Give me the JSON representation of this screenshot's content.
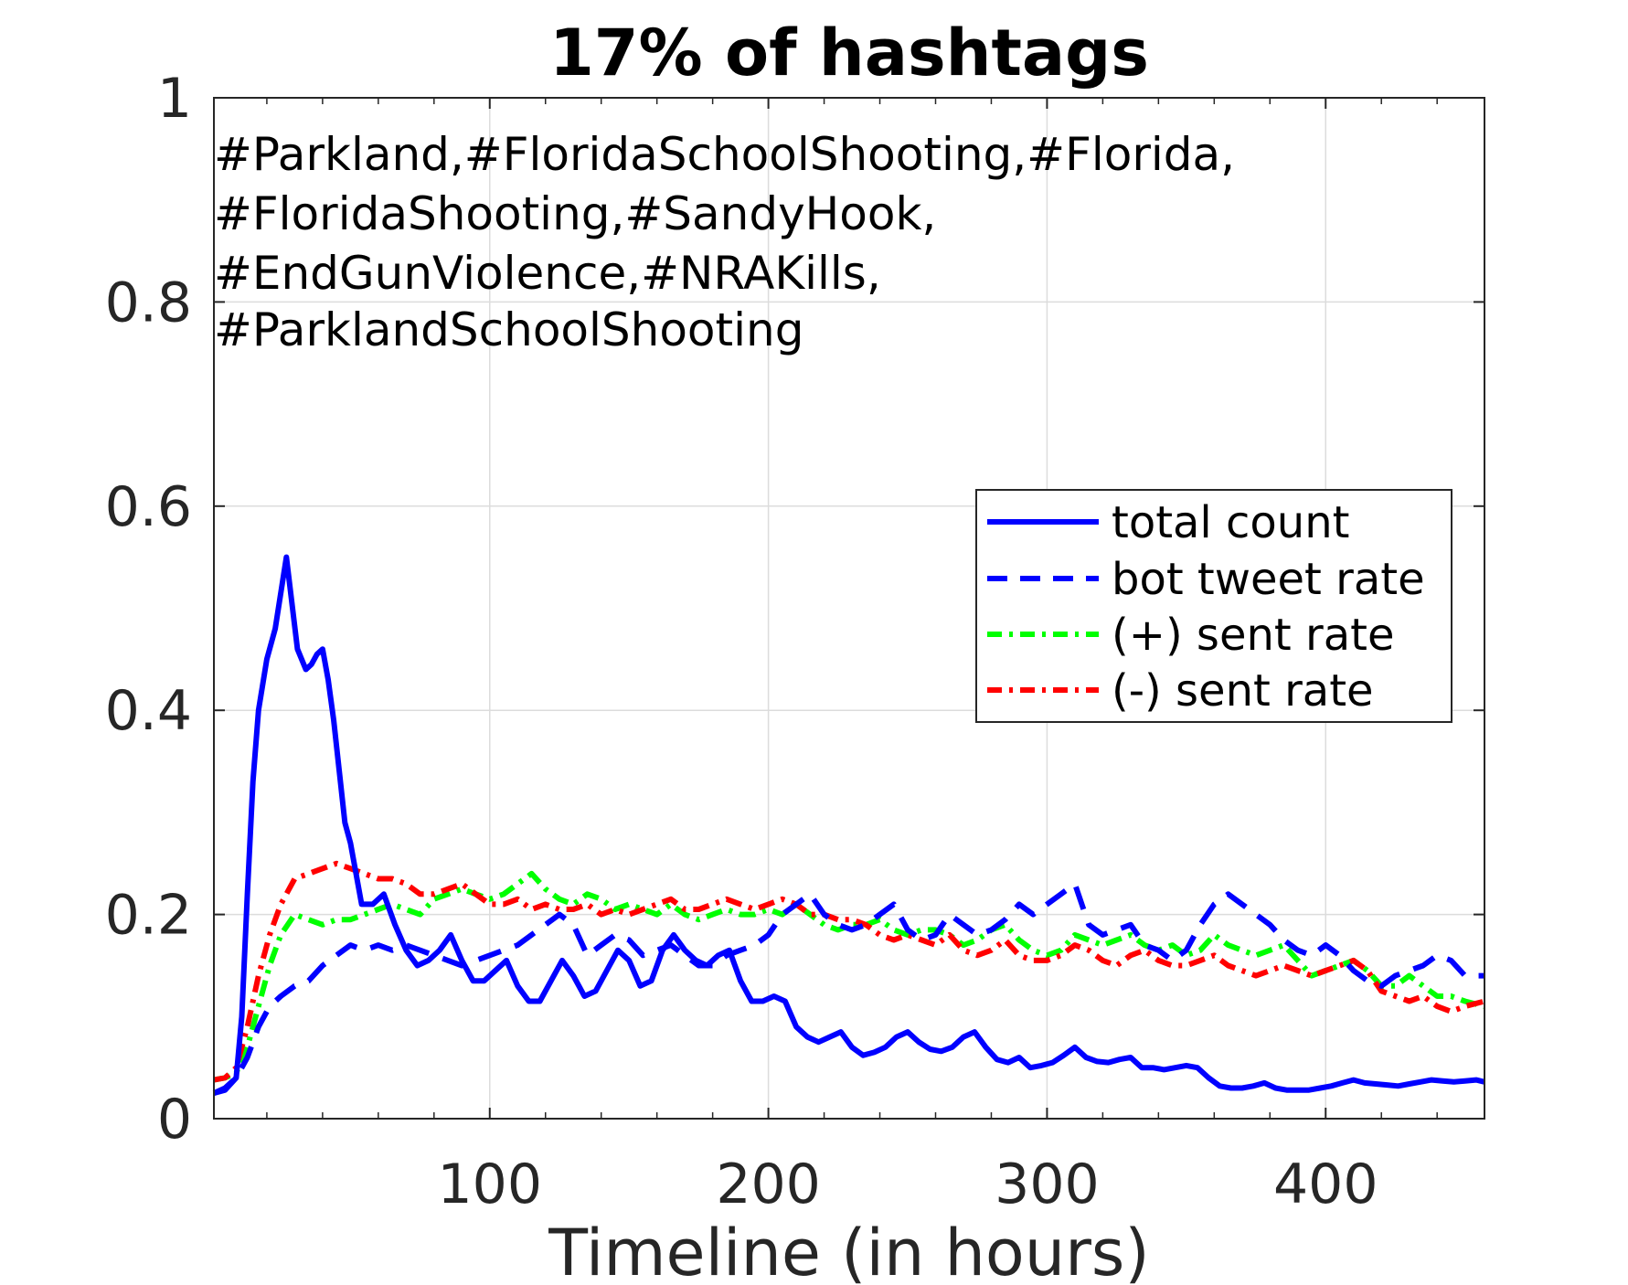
{
  "chart_data": {
    "type": "line",
    "title": "17% of hashtags",
    "xlabel": "Timeline (in hours)",
    "ylabel": "",
    "xlim": [
      1,
      457
    ],
    "ylim": [
      0,
      1
    ],
    "xticks": [
      100,
      200,
      300,
      400
    ],
    "xtick_labels": [
      "100",
      "200",
      "300",
      "400"
    ],
    "yticks": [
      0,
      0.2,
      0.4,
      0.6,
      0.8,
      1
    ],
    "ytick_labels": [
      "0",
      "0.2",
      "0.4",
      "0.6",
      "0.8",
      "1"
    ],
    "grid": true,
    "legend_position": "right",
    "annotation_lines": [
      "#Parkland,#FloridaSchoolShooting,#Florida,",
      "#FloridaShooting,#SandyHook,",
      "#EndGunViolence,#NRAKills,",
      "#ParklandSchoolShooting"
    ],
    "series": [
      {
        "name": "total count",
        "color": "#0000ff",
        "style": "solid",
        "x": [
          1,
          5,
          9,
          11,
          13,
          15,
          17,
          20,
          23,
          27,
          31,
          34,
          36,
          38,
          40,
          42,
          44,
          46,
          48,
          50,
          54,
          58,
          62,
          66,
          70,
          74,
          78,
          82,
          86,
          90,
          94,
          98,
          102,
          106,
          110,
          114,
          118,
          122,
          126,
          130,
          134,
          138,
          142,
          146,
          150,
          154,
          158,
          162,
          166,
          170,
          174,
          178,
          182,
          186,
          190,
          194,
          198,
          202,
          206,
          210,
          214,
          218,
          222,
          226,
          230,
          234,
          238,
          242,
          246,
          250,
          254,
          258,
          262,
          266,
          270,
          274,
          278,
          282,
          286,
          290,
          294,
          298,
          302,
          306,
          310,
          314,
          318,
          322,
          326,
          330,
          334,
          338,
          342,
          346,
          350,
          354,
          358,
          362,
          366,
          370,
          374,
          378,
          382,
          386,
          390,
          394,
          398,
          402,
          406,
          410,
          414,
          418,
          422,
          426,
          430,
          434,
          438,
          442,
          446,
          450,
          454,
          457
        ],
        "values": [
          0.025,
          0.028,
          0.04,
          0.1,
          0.22,
          0.33,
          0.4,
          0.45,
          0.48,
          0.55,
          0.46,
          0.44,
          0.445,
          0.455,
          0.46,
          0.43,
          0.39,
          0.34,
          0.29,
          0.27,
          0.21,
          0.21,
          0.22,
          0.19,
          0.165,
          0.15,
          0.155,
          0.165,
          0.18,
          0.155,
          0.135,
          0.135,
          0.145,
          0.155,
          0.13,
          0.115,
          0.115,
          0.135,
          0.155,
          0.14,
          0.12,
          0.125,
          0.145,
          0.165,
          0.155,
          0.13,
          0.135,
          0.165,
          0.18,
          0.165,
          0.155,
          0.15,
          0.16,
          0.165,
          0.135,
          0.115,
          0.115,
          0.12,
          0.115,
          0.09,
          0.08,
          0.075,
          0.08,
          0.085,
          0.07,
          0.062,
          0.065,
          0.07,
          0.08,
          0.085,
          0.075,
          0.068,
          0.066,
          0.07,
          0.08,
          0.085,
          0.07,
          0.058,
          0.055,
          0.06,
          0.05,
          0.052,
          0.055,
          0.062,
          0.07,
          0.06,
          0.056,
          0.055,
          0.058,
          0.06,
          0.05,
          0.05,
          0.048,
          0.05,
          0.052,
          0.05,
          0.04,
          0.032,
          0.03,
          0.03,
          0.032,
          0.035,
          0.03,
          0.028,
          0.028,
          0.028,
          0.03,
          0.032,
          0.035,
          0.038,
          0.035,
          0.034,
          0.033,
          0.032,
          0.034,
          0.036,
          0.038,
          0.037,
          0.036,
          0.037,
          0.038,
          0.036
        ]
      },
      {
        "name": "bot tweet rate",
        "color": "#0000ff",
        "style": "dashed",
        "x": [
          1,
          5,
          9,
          13,
          17,
          21,
          25,
          30,
          35,
          40,
          45,
          50,
          55,
          60,
          65,
          70,
          75,
          80,
          85,
          90,
          95,
          100,
          105,
          110,
          115,
          120,
          125,
          130,
          135,
          140,
          145,
          150,
          155,
          160,
          165,
          170,
          175,
          180,
          185,
          190,
          195,
          200,
          205,
          210,
          215,
          220,
          225,
          230,
          235,
          240,
          245,
          250,
          255,
          260,
          265,
          270,
          275,
          280,
          285,
          290,
          295,
          300,
          305,
          310,
          315,
          320,
          325,
          330,
          335,
          340,
          345,
          350,
          355,
          360,
          365,
          370,
          375,
          380,
          385,
          390,
          395,
          400,
          405,
          410,
          415,
          420,
          425,
          430,
          435,
          440,
          445,
          450,
          457
        ],
        "values": [
          0.025,
          0.03,
          0.04,
          0.06,
          0.09,
          0.11,
          0.12,
          0.13,
          0.135,
          0.15,
          0.16,
          0.17,
          0.165,
          0.17,
          0.165,
          0.17,
          0.165,
          0.16,
          0.155,
          0.15,
          0.155,
          0.16,
          0.165,
          0.17,
          0.18,
          0.19,
          0.2,
          0.19,
          0.16,
          0.17,
          0.18,
          0.175,
          0.16,
          0.165,
          0.17,
          0.16,
          0.15,
          0.15,
          0.16,
          0.165,
          0.17,
          0.18,
          0.2,
          0.21,
          0.22,
          0.2,
          0.19,
          0.185,
          0.19,
          0.2,
          0.21,
          0.185,
          0.175,
          0.18,
          0.2,
          0.19,
          0.18,
          0.185,
          0.195,
          0.21,
          0.2,
          0.21,
          0.22,
          0.23,
          0.19,
          0.18,
          0.185,
          0.19,
          0.17,
          0.165,
          0.155,
          0.165,
          0.19,
          0.21,
          0.22,
          0.21,
          0.2,
          0.19,
          0.175,
          0.165,
          0.16,
          0.17,
          0.16,
          0.145,
          0.135,
          0.13,
          0.14,
          0.145,
          0.15,
          0.16,
          0.155,
          0.14,
          0.14
        ]
      },
      {
        "name": "(+) sent rate",
        "color": "#00ff00",
        "style": "dash-dot",
        "x": [
          1,
          5,
          9,
          13,
          17,
          21,
          25,
          30,
          35,
          40,
          45,
          50,
          55,
          60,
          65,
          70,
          75,
          80,
          85,
          90,
          95,
          100,
          105,
          110,
          115,
          120,
          125,
          130,
          135,
          140,
          145,
          150,
          155,
          160,
          165,
          170,
          175,
          180,
          185,
          190,
          195,
          200,
          205,
          210,
          215,
          220,
          225,
          230,
          235,
          240,
          245,
          250,
          255,
          260,
          265,
          270,
          275,
          280,
          285,
          290,
          295,
          300,
          305,
          310,
          315,
          320,
          325,
          330,
          335,
          340,
          345,
          350,
          355,
          360,
          365,
          370,
          375,
          380,
          385,
          390,
          395,
          400,
          405,
          410,
          415,
          420,
          425,
          430,
          435,
          440,
          445,
          450,
          457
        ],
        "values": [
          0.038,
          0.04,
          0.045,
          0.07,
          0.11,
          0.15,
          0.18,
          0.2,
          0.195,
          0.19,
          0.195,
          0.195,
          0.2,
          0.205,
          0.21,
          0.205,
          0.2,
          0.215,
          0.22,
          0.225,
          0.22,
          0.215,
          0.22,
          0.23,
          0.24,
          0.225,
          0.215,
          0.21,
          0.22,
          0.215,
          0.205,
          0.21,
          0.205,
          0.2,
          0.21,
          0.2,
          0.195,
          0.2,
          0.205,
          0.2,
          0.2,
          0.205,
          0.2,
          0.21,
          0.2,
          0.19,
          0.185,
          0.19,
          0.19,
          0.195,
          0.185,
          0.18,
          0.185,
          0.185,
          0.18,
          0.17,
          0.175,
          0.185,
          0.19,
          0.175,
          0.165,
          0.16,
          0.165,
          0.18,
          0.175,
          0.17,
          0.175,
          0.18,
          0.17,
          0.165,
          0.17,
          0.16,
          0.165,
          0.18,
          0.17,
          0.165,
          0.16,
          0.165,
          0.17,
          0.155,
          0.14,
          0.145,
          0.15,
          0.155,
          0.145,
          0.13,
          0.13,
          0.14,
          0.13,
          0.12,
          0.12,
          0.115,
          0.11
        ]
      },
      {
        "name": "(-) sent rate",
        "color": "#ff0000",
        "style": "dash-dot",
        "x": [
          1,
          5,
          9,
          13,
          17,
          21,
          25,
          30,
          35,
          40,
          45,
          50,
          55,
          60,
          65,
          70,
          75,
          80,
          85,
          90,
          95,
          100,
          105,
          110,
          115,
          120,
          125,
          130,
          135,
          140,
          145,
          150,
          155,
          160,
          165,
          170,
          175,
          180,
          185,
          190,
          195,
          200,
          205,
          210,
          215,
          220,
          225,
          230,
          235,
          240,
          245,
          250,
          255,
          260,
          265,
          270,
          275,
          280,
          285,
          290,
          295,
          300,
          305,
          310,
          315,
          320,
          325,
          330,
          335,
          340,
          345,
          350,
          355,
          360,
          365,
          370,
          375,
          380,
          385,
          390,
          395,
          400,
          405,
          410,
          415,
          420,
          425,
          430,
          435,
          440,
          445,
          450,
          457
        ],
        "values": [
          0.038,
          0.04,
          0.05,
          0.09,
          0.14,
          0.18,
          0.21,
          0.235,
          0.24,
          0.245,
          0.25,
          0.245,
          0.24,
          0.235,
          0.235,
          0.23,
          0.22,
          0.22,
          0.225,
          0.23,
          0.22,
          0.21,
          0.21,
          0.215,
          0.205,
          0.21,
          0.205,
          0.205,
          0.21,
          0.2,
          0.205,
          0.2,
          0.205,
          0.21,
          0.215,
          0.205,
          0.205,
          0.21,
          0.215,
          0.21,
          0.205,
          0.21,
          0.215,
          0.21,
          0.2,
          0.2,
          0.195,
          0.195,
          0.19,
          0.18,
          0.175,
          0.18,
          0.175,
          0.17,
          0.18,
          0.165,
          0.16,
          0.165,
          0.175,
          0.16,
          0.155,
          0.155,
          0.16,
          0.17,
          0.165,
          0.155,
          0.15,
          0.16,
          0.165,
          0.155,
          0.15,
          0.15,
          0.155,
          0.16,
          0.15,
          0.145,
          0.14,
          0.145,
          0.15,
          0.145,
          0.14,
          0.145,
          0.15,
          0.155,
          0.145,
          0.125,
          0.12,
          0.115,
          0.12,
          0.11,
          0.105,
          0.11,
          0.115
        ]
      }
    ]
  }
}
